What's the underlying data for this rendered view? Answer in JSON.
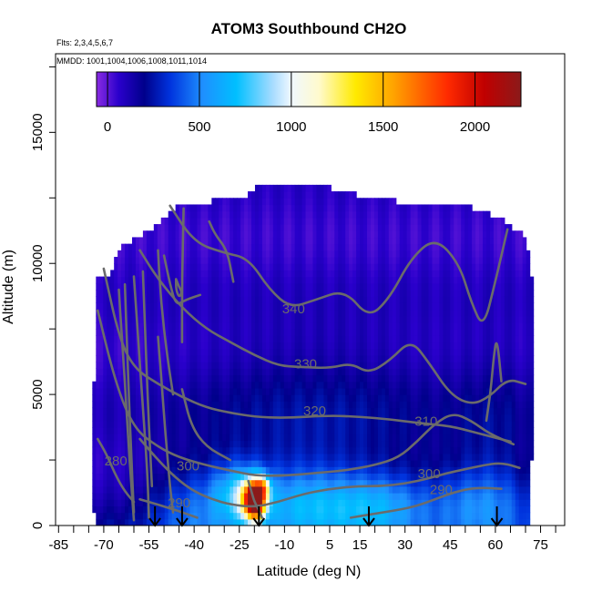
{
  "chart_data": {
    "type": "heatmap",
    "title": "ATOM3 Southbound CH2O",
    "flights_label": "Flts: 2,3,4,5,6,7",
    "dates_label": "MMDD: 1001,1004,1006,1008,1011,1014",
    "xlabel": "Latitude (deg N)",
    "ylabel": "Altitude (m)",
    "xlim": [
      -86,
      83
    ],
    "ylim": [
      0,
      18000
    ],
    "xticks": [
      -85,
      -70,
      -55,
      -40,
      -25,
      -10,
      5,
      15,
      30,
      45,
      60,
      75
    ],
    "yticks": [
      0,
      5000,
      10000,
      15000
    ],
    "colorbar": {
      "ticks": [
        0,
        500,
        1000,
        1500,
        2000
      ],
      "range": [
        -60,
        2250
      ],
      "stops": [
        {
          "v": -60,
          "c": "#8a2be2"
        },
        {
          "v": 60,
          "c": "#2a00cc"
        },
        {
          "v": 200,
          "c": "#00008b"
        },
        {
          "v": 340,
          "c": "#0033dd"
        },
        {
          "v": 520,
          "c": "#1e90ff"
        },
        {
          "v": 700,
          "c": "#00bfff"
        },
        {
          "v": 900,
          "c": "#a8dcff"
        },
        {
          "v": 1000,
          "c": "#f0f8ff"
        },
        {
          "v": 1150,
          "c": "#fffacd"
        },
        {
          "v": 1350,
          "c": "#ffea00"
        },
        {
          "v": 1550,
          "c": "#ffa500"
        },
        {
          "v": 1850,
          "c": "#ff2a00"
        },
        {
          "v": 2050,
          "c": "#c00000"
        },
        {
          "v": 2250,
          "c": "#8b1a1a"
        }
      ]
    },
    "data_extent": {
      "top": [
        [
          -68,
          9600
        ],
        [
          -65,
          10600
        ],
        [
          -58,
          11000
        ],
        [
          -50,
          11700
        ],
        [
          -45,
          12200
        ],
        [
          -40,
          12300
        ],
        [
          -32,
          12400
        ],
        [
          -25,
          12400
        ],
        [
          -20,
          12900
        ],
        [
          -10,
          12900
        ],
        [
          5,
          12900
        ],
        [
          15,
          12600
        ],
        [
          25,
          12400
        ],
        [
          35,
          12300
        ],
        [
          50,
          12200
        ],
        [
          62,
          11700
        ],
        [
          70,
          11000
        ],
        [
          72,
          9500
        ],
        [
          73,
          5000
        ],
        [
          72,
          2500
        ]
      ],
      "bottom": [
        [
          -66,
          0
        ],
        [
          70,
          0
        ]
      ],
      "left": [
        [
          -74,
          5500
        ],
        [
          -73,
          3000
        ],
        [
          -72,
          1500
        ],
        [
          -70,
          500
        ]
      ]
    },
    "field": {
      "base": 60,
      "features": [
        {
          "lat": -20,
          "alt": 1000,
          "slat": 2.5,
          "salt": 500,
          "amp": 2100
        },
        {
          "lat": -17,
          "alt": 1500,
          "slat": 1.5,
          "salt": 300,
          "amp": 600
        },
        {
          "lat": -25,
          "alt": 1200,
          "slat": 6,
          "salt": 800,
          "amp": 500
        },
        {
          "lat": -5,
          "alt": 800,
          "slat": 12,
          "salt": 1000,
          "amp": 400
        },
        {
          "lat": 20,
          "alt": 700,
          "slat": 12,
          "salt": 900,
          "amp": 420
        },
        {
          "lat": 55,
          "alt": 800,
          "slat": 12,
          "salt": 1000,
          "amp": 300
        },
        {
          "lat": -40,
          "alt": 600,
          "slat": 10,
          "salt": 1200,
          "amp": 250
        },
        {
          "lat": 0,
          "alt": 3500,
          "slat": 35,
          "salt": 2500,
          "amp": 180
        },
        {
          "lat": 60,
          "alt": 3000,
          "slat": 10,
          "salt": 2500,
          "amp": 120
        }
      ]
    },
    "contours": [
      {
        "label": "340",
        "label_at": [
          -7,
          8100
        ],
        "points": [
          [
            -48,
            12200
          ],
          [
            -40,
            10800
          ],
          [
            -30,
            10400
          ],
          [
            -22,
            10200
          ],
          [
            -15,
            9000
          ],
          [
            -8,
            8300
          ],
          [
            0,
            8600
          ],
          [
            10,
            9000
          ],
          [
            18,
            7900
          ],
          [
            25,
            8700
          ],
          [
            32,
            10200
          ],
          [
            40,
            11000
          ],
          [
            48,
            10000
          ],
          [
            52,
            8500
          ],
          [
            56,
            7500
          ],
          [
            60,
            9300
          ],
          [
            64,
            11300
          ]
        ]
      },
      {
        "label": "330",
        "label_at": [
          -3,
          6000
        ],
        "points": [
          [
            -58,
            10500
          ],
          [
            -52,
            9400
          ],
          [
            -44,
            8300
          ],
          [
            -36,
            7500
          ],
          [
            -28,
            7000
          ],
          [
            -20,
            6500
          ],
          [
            -12,
            6100
          ],
          [
            -5,
            6050
          ],
          [
            5,
            6000
          ],
          [
            12,
            6200
          ],
          [
            18,
            5800
          ],
          [
            25,
            6300
          ],
          [
            32,
            7100
          ],
          [
            38,
            6200
          ],
          [
            45,
            5000
          ],
          [
            52,
            4600
          ],
          [
            58,
            4900
          ],
          [
            64,
            5600
          ],
          [
            70,
            5400
          ]
        ]
      },
      {
        "label": "320",
        "label_at": [
          0,
          4200
        ],
        "points": [
          [
            -70,
            9800
          ],
          [
            -65,
            7200
          ],
          [
            -60,
            6000
          ],
          [
            -52,
            5400
          ],
          [
            -44,
            4900
          ],
          [
            -36,
            4500
          ],
          [
            -28,
            4300
          ],
          [
            -20,
            4150
          ],
          [
            -10,
            4100
          ],
          [
            5,
            4200
          ],
          [
            15,
            4150
          ],
          [
            25,
            4050
          ],
          [
            35,
            3900
          ],
          [
            45,
            3800
          ],
          [
            55,
            3500
          ],
          [
            65,
            3200
          ]
        ]
      },
      {
        "label": "310",
        "label_at": [
          37,
          3800
        ],
        "points": [
          [
            -72,
            8200
          ],
          [
            -66,
            5400
          ],
          [
            -60,
            3700
          ],
          [
            -52,
            3000
          ],
          [
            -45,
            2600
          ],
          [
            -36,
            2300
          ],
          [
            -28,
            2100
          ],
          [
            -20,
            1900
          ],
          [
            -10,
            1900
          ],
          [
            0,
            2000
          ],
          [
            10,
            2100
          ],
          [
            20,
            2300
          ],
          [
            28,
            2600
          ],
          [
            34,
            3200
          ],
          [
            40,
            3900
          ],
          [
            46,
            4300
          ],
          [
            52,
            4000
          ],
          [
            58,
            3500
          ],
          [
            66,
            3100
          ]
        ]
      },
      {
        "label": "300",
        "label_at": [
          -42,
          2100
        ],
        "points": [
          [
            -58,
            3300
          ],
          [
            -52,
            2500
          ],
          [
            -46,
            1800
          ],
          [
            -40,
            1300
          ],
          [
            -34,
            1000
          ],
          [
            -28,
            800
          ],
          [
            -20,
            700
          ],
          [
            -12,
            900
          ],
          [
            -4,
            1200
          ],
          [
            5,
            1400
          ],
          [
            14,
            1500
          ],
          [
            22,
            1500
          ],
          [
            30,
            1600
          ],
          [
            38,
            1800
          ],
          [
            44,
            2000
          ],
          [
            50,
            2150
          ],
          [
            56,
            2300
          ],
          [
            62,
            2400
          ],
          [
            68,
            2200
          ]
        ]
      },
      {
        "label": "290",
        "label_at": [
          -45,
          700
        ],
        "points": [
          [
            -58,
            1000
          ],
          [
            -52,
            800
          ],
          [
            -45,
            550
          ],
          [
            -39,
            300
          ]
        ]
      },
      {
        "label": "280",
        "label_at": [
          -66,
          2300
        ],
        "points": [
          [
            -72,
            3300
          ],
          [
            -69,
            2700
          ],
          [
            -66,
            1900
          ],
          [
            -63,
            1300
          ],
          [
            -60,
            900
          ]
        ]
      },
      {
        "label": "290",
        "label_at": [
          42,
          1200
        ],
        "points": [
          [
            12,
            300
          ],
          [
            20,
            450
          ],
          [
            28,
            600
          ],
          [
            34,
            750
          ],
          [
            40,
            1000
          ],
          [
            47,
            1300
          ],
          [
            54,
            1450
          ],
          [
            62,
            1400
          ]
        ]
      },
      {
        "label": "300",
        "label_at": [
          38,
          1800
        ],
        "points": []
      }
    ],
    "extra_curves": [
      [
        [
          -65,
          9000
        ],
        [
          -64,
          7200
        ],
        [
          -63,
          5500
        ],
        [
          -62,
          3500
        ],
        [
          -61,
          1800
        ],
        [
          -60,
          200
        ]
      ],
      [
        [
          -63,
          9200
        ],
        [
          -62,
          6000
        ],
        [
          -61,
          3000
        ],
        [
          -60,
          500
        ]
      ],
      [
        [
          -60,
          9500
        ],
        [
          -58.5,
          7000
        ],
        [
          -57,
          4500
        ],
        [
          -55.5,
          2000
        ],
        [
          -55,
          300
        ]
      ],
      [
        [
          -57,
          9700
        ],
        [
          -56,
          6500
        ],
        [
          -55,
          3800
        ],
        [
          -54,
          1500
        ]
      ],
      [
        [
          -52,
          10500
        ],
        [
          -51,
          8500
        ],
        [
          -49,
          6500
        ],
        [
          -47,
          5000
        ]
      ],
      [
        [
          -50,
          10300
        ],
        [
          -48,
          9200
        ],
        [
          -46,
          8400
        ],
        [
          -43,
          8600
        ],
        [
          -38,
          8800
        ]
      ],
      [
        [
          -46,
          9400
        ],
        [
          -45,
          9100
        ],
        [
          -44,
          8900
        ],
        [
          -45,
          8700
        ],
        [
          -46,
          9000
        ],
        [
          -46,
          9400
        ]
      ],
      [
        [
          -44,
          7000
        ],
        [
          -44,
          9500
        ],
        [
          -43.5,
          12100
        ]
      ],
      [
        [
          -35,
          11600
        ],
        [
          -33,
          11100
        ],
        [
          -29,
          10500
        ],
        [
          -27,
          9300
        ]
      ],
      [
        [
          -52,
          7200
        ],
        [
          -51,
          5800
        ],
        [
          -50,
          4200
        ],
        [
          -49,
          2800
        ],
        [
          -48,
          1500
        ],
        [
          -47,
          500
        ]
      ],
      [
        [
          -44,
          5200
        ],
        [
          -41,
          3800
        ],
        [
          -36,
          3000
        ],
        [
          -28,
          2500
        ]
      ],
      [
        [
          -22,
          1700
        ],
        [
          -21,
          1300
        ],
        [
          -20,
          900
        ],
        [
          -18.5,
          600
        ],
        [
          -17.5,
          300
        ]
      ],
      [
        [
          57,
          4000
        ],
        [
          58.5,
          5200
        ],
        [
          59.5,
          6500
        ],
        [
          60.5,
          7200
        ],
        [
          62,
          5500
        ]
      ]
    ],
    "arrows_lat": [
      -53,
      -44,
      -18.5,
      18,
      60.5
    ]
  }
}
